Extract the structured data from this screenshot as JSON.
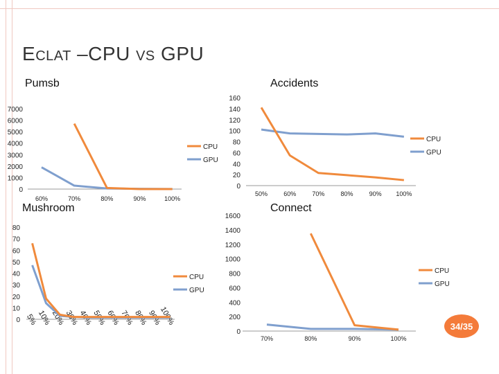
{
  "slide": {
    "title_first": "E",
    "title_sc1": "CLAT",
    "title_mid": " –CPU ",
    "title_sc2": "VS",
    "title_end": " GPU",
    "page": "34/35"
  },
  "colors": {
    "cpu": "#f08a3c",
    "gpu": "#7f9fce"
  },
  "chart_data": [
    {
      "type": "line",
      "title": "Pumsb",
      "categories": [
        "60%",
        "70%",
        "80%",
        "90%",
        "100%"
      ],
      "ylim": [
        0,
        7000
      ],
      "yticks": [
        0,
        1000,
        2000,
        3000,
        4000,
        5000,
        6000,
        7000
      ],
      "series": [
        {
          "name": "CPU",
          "values": [
            null,
            5700,
            100,
            0,
            0
          ]
        },
        {
          "name": "GPU",
          "values": [
            1900,
            300,
            50,
            20,
            10
          ]
        }
      ],
      "legend": "right"
    },
    {
      "type": "line",
      "title": "Accidents",
      "categories": [
        "50%",
        "60%",
        "70%",
        "80%",
        "90%",
        "100%"
      ],
      "ylim": [
        0,
        160
      ],
      "yticks": [
        0,
        20,
        40,
        60,
        80,
        100,
        120,
        140,
        160
      ],
      "series": [
        {
          "name": "CPU",
          "values": [
            142,
            55,
            23,
            19,
            15,
            10
          ]
        },
        {
          "name": "GPU",
          "values": [
            102,
            95,
            94,
            93,
            95,
            89
          ]
        }
      ],
      "legend": "right"
    },
    {
      "type": "line",
      "title": "Mushroom",
      "categories": [
        "5%",
        "10%",
        "20%",
        "30%",
        "40%",
        "50%",
        "60%",
        "70%",
        "80%",
        "90%",
        "100%"
      ],
      "ylim": [
        0,
        80
      ],
      "yticks": [
        0,
        10,
        20,
        30,
        40,
        50,
        60,
        70,
        80
      ],
      "series": [
        {
          "name": "CPU",
          "values": [
            66,
            18,
            4,
            2,
            2,
            2,
            2,
            2,
            2,
            2,
            2
          ]
        },
        {
          "name": "GPU",
          "values": [
            47,
            14,
            3,
            2,
            1.5,
            1.5,
            1.5,
            1.5,
            1.5,
            1.5,
            1.5
          ]
        }
      ],
      "legend": "right"
    },
    {
      "type": "line",
      "title": "Connect",
      "categories": [
        "70%",
        "80%",
        "90%",
        "100%"
      ],
      "ylim": [
        0,
        1600
      ],
      "yticks": [
        0,
        200,
        400,
        600,
        800,
        1000,
        1200,
        1400,
        1600
      ],
      "series": [
        {
          "name": "CPU",
          "values": [
            null,
            1350,
            80,
            20
          ]
        },
        {
          "name": "GPU",
          "values": [
            90,
            30,
            30,
            20
          ]
        }
      ],
      "legend": "right"
    }
  ]
}
